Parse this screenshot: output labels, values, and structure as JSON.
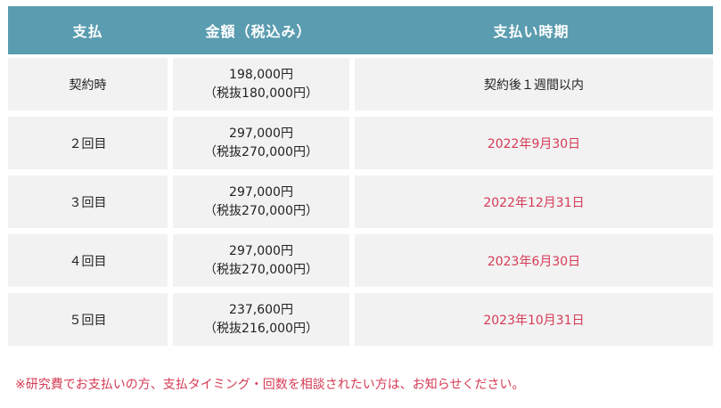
{
  "header": {
    "col1": "支払",
    "col2": "金額（税込み）",
    "col3": "支払い時期"
  },
  "rows": [
    {
      "label": "契約時",
      "amount": "198,000円",
      "amount_ex_tax": "（税抜180,000円）",
      "timing": "契約後１週間以内"
    },
    {
      "label": "２回目",
      "amount": "297,000円",
      "amount_ex_tax": "（税抜270,000円）",
      "timing": "2022年9月30日"
    },
    {
      "label": "３回目",
      "amount": "297,000円",
      "amount_ex_tax": "（税抜270,000円）",
      "timing": "2022年12月31日"
    },
    {
      "label": "４回目",
      "amount": "297,000円",
      "amount_ex_tax": "（税抜270,000円）",
      "timing": "2023年6月30日"
    },
    {
      "label": "５回目",
      "amount": "237,600円",
      "amount_ex_tax": "（税抜216,000円）",
      "timing": "2023年10月31日"
    }
  ],
  "note": "※研究費でお支払いの方、支払タイミング・回数を相談されたい方は、お知らせください。",
  "colors": {
    "header_bg": "#5a9cb0",
    "cell_bg": "#f2f2f2",
    "accent_red": "#d63a55"
  }
}
